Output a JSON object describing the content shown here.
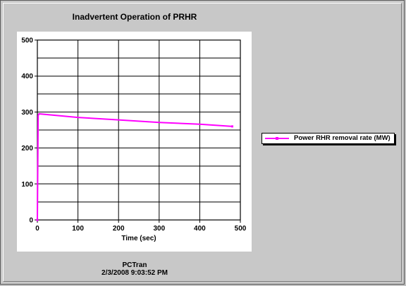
{
  "chart_data": {
    "type": "line",
    "title": "Inadvertent Operation of PRHR",
    "xlabel": "Time (sec)",
    "ylabel": "",
    "xlim": [
      0,
      500
    ],
    "ylim": [
      0,
      500
    ],
    "xticks": [
      0,
      100,
      200,
      300,
      400,
      500
    ],
    "yticks": [
      0,
      100,
      200,
      300,
      400,
      500
    ],
    "grid": true,
    "legend_position": "right",
    "series": [
      {
        "name": "Power RHR removal rate (MW)",
        "color": "#ff00ff",
        "x": [
          0,
          1,
          2,
          4,
          100,
          200,
          300,
          400,
          480
        ],
        "y": [
          0,
          150,
          290,
          295,
          285,
          278,
          271,
          266,
          260
        ]
      }
    ]
  },
  "footer": {
    "app": "PCTran",
    "timestamp": "2/3/2008 9:03:52 PM"
  }
}
